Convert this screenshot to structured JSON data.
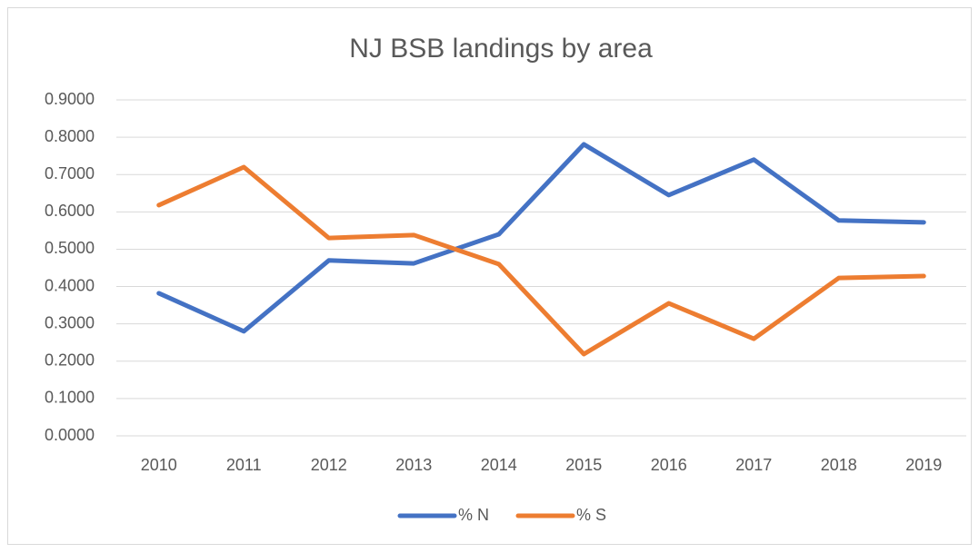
{
  "chart_data": {
    "type": "line",
    "title": "NJ BSB landings by area",
    "categories": [
      "2010",
      "2011",
      "2012",
      "2013",
      "2014",
      "2015",
      "2016",
      "2017",
      "2018",
      "2019"
    ],
    "series": [
      {
        "name": "% N",
        "color": "#4472c4",
        "values": [
          0.382,
          0.28,
          0.47,
          0.462,
          0.54,
          0.781,
          0.645,
          0.74,
          0.577,
          0.572
        ]
      },
      {
        "name": "% S",
        "color": "#ed7d31",
        "values": [
          0.618,
          0.72,
          0.53,
          0.538,
          0.46,
          0.219,
          0.355,
          0.26,
          0.423,
          0.428
        ]
      }
    ],
    "ylim": [
      0,
      0.9
    ],
    "yticks": [
      {
        "value": 0,
        "label": "0.0000"
      },
      {
        "value": 0.1,
        "label": "0.1000"
      },
      {
        "value": 0.2,
        "label": "0.2000"
      },
      {
        "value": 0.3,
        "label": "0.3000"
      },
      {
        "value": 0.4,
        "label": "0.4000"
      },
      {
        "value": 0.5,
        "label": "0.5000"
      },
      {
        "value": 0.6,
        "label": "0.6000"
      },
      {
        "value": 0.7,
        "label": "0.7000"
      },
      {
        "value": 0.8,
        "label": "0.8000"
      },
      {
        "value": 0.9,
        "label": "0.9000"
      }
    ],
    "grid": true,
    "legend": "bottom"
  }
}
